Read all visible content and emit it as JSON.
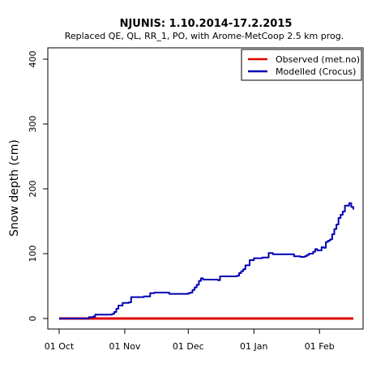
{
  "chart_data": {
    "type": "line",
    "title": "NJUNIS: 1.10.2014-17.2.2015",
    "subtitle": "Replaced QE, QL, RR_1, PO,  with Arome-MetCoop 2.5 km prog.",
    "xlabel": "",
    "ylabel": "Snow depth (cm)",
    "x_tick_labels": [
      "01 Oct",
      "01 Nov",
      "01 Dec",
      "01 Jan",
      "01 Feb"
    ],
    "x_tick_dates": [
      "2014-10-01",
      "2014-11-01",
      "2014-12-01",
      "2015-01-01",
      "2015-02-01"
    ],
    "xlim": [
      "2014-10-01",
      "2015-02-17"
    ],
    "ylim": [
      0,
      400
    ],
    "y_ticks": [
      0,
      100,
      200,
      300,
      400
    ],
    "grid": false,
    "legend_position": "top-right",
    "legend": [
      {
        "label": "Observed (met.no)",
        "color": "#e00000"
      },
      {
        "label": "Modelled (Crocus)",
        "color": "#0000b4"
      }
    ],
    "series": [
      {
        "name": "Observed (met.no)",
        "color": "#e00000",
        "x": [
          "2014-10-01",
          "2015-02-17"
        ],
        "y": [
          0,
          0
        ]
      },
      {
        "name": "Modelled (Crocus)",
        "color": "#0000b4",
        "x": [
          "2014-10-01",
          "2014-10-10",
          "2014-10-15",
          "2014-10-17",
          "2014-10-18",
          "2014-10-25",
          "2014-10-26",
          "2014-10-27",
          "2014-10-28",
          "2014-10-29",
          "2014-10-31",
          "2014-11-03",
          "2014-11-04",
          "2014-11-10",
          "2014-11-13",
          "2014-11-15",
          "2014-11-22",
          "2014-11-28",
          "2014-12-01",
          "2014-12-02",
          "2014-12-03",
          "2014-12-04",
          "2014-12-05",
          "2014-12-06",
          "2014-12-07",
          "2014-12-08",
          "2014-12-10",
          "2014-12-15",
          "2014-12-16",
          "2014-12-20",
          "2014-12-24",
          "2014-12-25",
          "2014-12-26",
          "2014-12-27",
          "2014-12-28",
          "2014-12-30",
          "2015-01-01",
          "2015-01-05",
          "2015-01-07",
          "2015-01-08",
          "2015-01-10",
          "2015-01-20",
          "2015-01-23",
          "2015-01-24",
          "2015-01-25",
          "2015-01-26",
          "2015-01-27",
          "2015-01-29",
          "2015-01-30",
          "2015-01-31",
          "2015-02-02",
          "2015-02-03",
          "2015-02-04",
          "2015-02-05",
          "2015-02-06",
          "2015-02-07",
          "2015-02-08",
          "2015-02-09",
          "2015-02-10",
          "2015-02-11",
          "2015-02-12",
          "2015-02-13",
          "2015-02-15",
          "2015-02-16",
          "2015-02-17"
        ],
        "y": [
          0,
          0,
          2,
          3,
          6,
          6,
          7,
          10,
          15,
          20,
          24,
          25,
          33,
          34,
          39,
          40,
          38,
          38,
          39,
          40,
          44,
          48,
          52,
          58,
          62,
          60,
          60,
          59,
          65,
          65,
          66,
          70,
          73,
          76,
          82,
          90,
          93,
          94,
          94,
          101,
          99,
          96,
          95,
          95,
          96,
          98,
          100,
          103,
          107,
          105,
          110,
          109,
          118,
          120,
          122,
          130,
          138,
          145,
          155,
          160,
          165,
          174,
          178,
          172,
          168
        ]
      }
    ]
  }
}
